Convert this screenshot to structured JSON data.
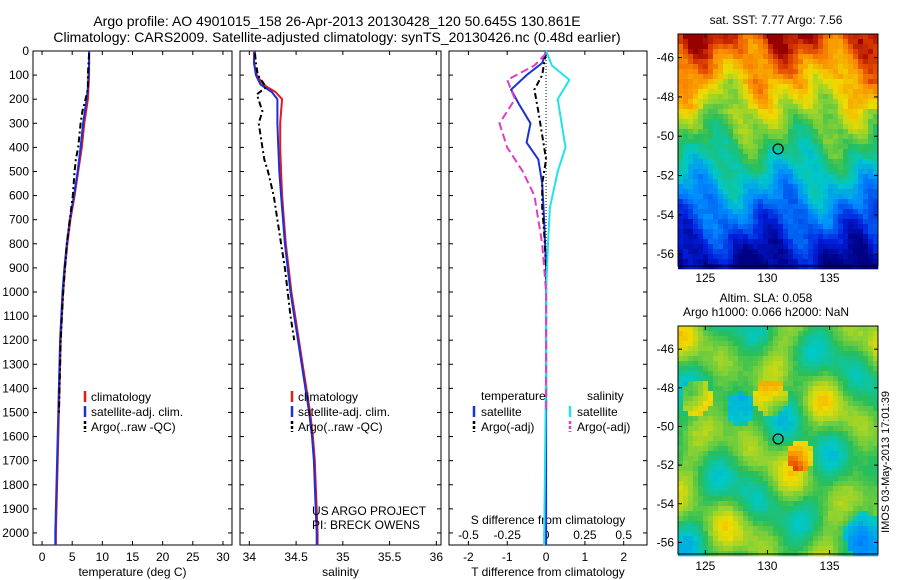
{
  "header": {
    "line1": "Argo profile: AO 4901015_158 26-Apr-2013 20130428_120 50.645S 130.861E",
    "line2": "Climatology: CARS2009. Satellite-adjusted climatology: synTS_20130426.nc (0.48d earlier)"
  },
  "side_label": "IMOS 03-May-2013 17:01:39",
  "chart_data": [
    {
      "type": "line",
      "panel": "temperature",
      "xlabel": "temperature (deg C)",
      "xlim": [
        -1.5,
        31.5
      ],
      "xticks": [
        0,
        5,
        10,
        15,
        20,
        25,
        30
      ],
      "ylim": [
        0,
        2050
      ],
      "yticks": [
        0,
        100,
        200,
        300,
        400,
        500,
        600,
        700,
        800,
        900,
        1000,
        1100,
        1200,
        1300,
        1400,
        1500,
        1600,
        1700,
        1800,
        1900,
        2000
      ],
      "yinverted": true,
      "legend": [
        "climatology",
        "satellite-adj. clim.",
        "Argo(..raw -QC)"
      ],
      "series": [
        {
          "name": "climatology",
          "color": "#e41a1c",
          "dash": "solid",
          "points": [
            [
              7.8,
              0
            ],
            [
              7.8,
              50
            ],
            [
              7.8,
              100
            ],
            [
              7.7,
              150
            ],
            [
              7.6,
              200
            ],
            [
              7.3,
              250
            ],
            [
              7.0,
              300
            ],
            [
              6.6,
              400
            ],
            [
              6.0,
              500
            ],
            [
              5.4,
              600
            ],
            [
              4.7,
              700
            ],
            [
              4.2,
              800
            ],
            [
              3.8,
              900
            ],
            [
              3.5,
              1000
            ],
            [
              3.3,
              1100
            ],
            [
              3.1,
              1200
            ],
            [
              3.0,
              1300
            ],
            [
              2.9,
              1400
            ],
            [
              2.8,
              1500
            ],
            [
              2.7,
              1600
            ],
            [
              2.6,
              1700
            ],
            [
              2.5,
              1800
            ],
            [
              2.4,
              1900
            ],
            [
              2.3,
              2000
            ],
            [
              2.3,
              2050
            ]
          ]
        },
        {
          "name": "satellite-adj. clim.",
          "color": "#1f2fd6",
          "dash": "solid",
          "points": [
            [
              7.8,
              0
            ],
            [
              7.8,
              50
            ],
            [
              7.7,
              100
            ],
            [
              7.6,
              150
            ],
            [
              7.4,
              200
            ],
            [
              7.1,
              250
            ],
            [
              6.8,
              300
            ],
            [
              6.4,
              400
            ],
            [
              5.9,
              500
            ],
            [
              5.3,
              600
            ],
            [
              4.6,
              700
            ],
            [
              4.1,
              800
            ],
            [
              3.7,
              900
            ],
            [
              3.4,
              1000
            ],
            [
              3.2,
              1100
            ],
            [
              3.0,
              1200
            ],
            [
              2.9,
              1300
            ],
            [
              2.8,
              1400
            ],
            [
              2.7,
              1500
            ],
            [
              2.6,
              1600
            ],
            [
              2.5,
              1700
            ],
            [
              2.4,
              1800
            ],
            [
              2.3,
              1900
            ],
            [
              2.2,
              2000
            ],
            [
              2.2,
              2050
            ]
          ]
        },
        {
          "name": "Argo(..raw -QC)",
          "color": "#000000",
          "dash": "6,3,2,3",
          "points": [
            [
              7.8,
              10
            ],
            [
              7.7,
              50
            ],
            [
              7.6,
              100
            ],
            [
              7.6,
              150
            ],
            [
              7.5,
              170
            ],
            [
              7.2,
              200
            ],
            [
              6.7,
              250
            ],
            [
              6.4,
              300
            ],
            [
              6.2,
              350
            ],
            [
              6.0,
              400
            ],
            [
              5.6,
              450
            ],
            [
              5.4,
              500
            ],
            [
              5.1,
              600
            ],
            [
              4.6,
              700
            ],
            [
              4.1,
              800
            ],
            [
              3.8,
              900
            ],
            [
              3.5,
              1000
            ],
            [
              3.3,
              1100
            ],
            [
              3.1,
              1200
            ],
            [
              3.0,
              1300
            ],
            [
              2.9,
              1400
            ],
            [
              2.8,
              1500
            ]
          ]
        }
      ]
    },
    {
      "type": "line",
      "panel": "salinity",
      "xlabel": "salinity",
      "xlim": [
        33.9,
        36.05
      ],
      "xticks": [
        34,
        34.5,
        35,
        35.5,
        36
      ],
      "ylim": [
        0,
        2050
      ],
      "yinverted": true,
      "legend": [
        "climatology",
        "satellite-adj. clim.",
        "Argo(..raw -QC)"
      ],
      "annotation": [
        "US ARGO PROJECT",
        "PI: BRECK OWENS"
      ],
      "series": [
        {
          "name": "climatology",
          "color": "#e41a1c",
          "dash": "solid",
          "points": [
            [
              34.05,
              0
            ],
            [
              34.05,
              50
            ],
            [
              34.08,
              100
            ],
            [
              34.15,
              140
            ],
            [
              34.28,
              170
            ],
            [
              34.35,
              200
            ],
            [
              34.34,
              250
            ],
            [
              34.33,
              300
            ],
            [
              34.33,
              400
            ],
            [
              34.34,
              500
            ],
            [
              34.35,
              600
            ],
            [
              34.37,
              700
            ],
            [
              34.39,
              800
            ],
            [
              34.42,
              900
            ],
            [
              34.45,
              1000
            ],
            [
              34.49,
              1100
            ],
            [
              34.53,
              1200
            ],
            [
              34.57,
              1300
            ],
            [
              34.61,
              1400
            ],
            [
              34.65,
              1500
            ],
            [
              34.68,
              1600
            ],
            [
              34.7,
              1700
            ],
            [
              34.71,
              1800
            ],
            [
              34.72,
              1900
            ],
            [
              34.73,
              2000
            ],
            [
              34.73,
              2050
            ]
          ]
        },
        {
          "name": "satellite-adj. clim.",
          "color": "#1f2fd6",
          "dash": "solid",
          "points": [
            [
              34.06,
              0
            ],
            [
              34.05,
              50
            ],
            [
              34.07,
              100
            ],
            [
              34.12,
              140
            ],
            [
              34.24,
              170
            ],
            [
              34.3,
              200
            ],
            [
              34.3,
              250
            ],
            [
              34.3,
              300
            ],
            [
              34.31,
              400
            ],
            [
              34.32,
              500
            ],
            [
              34.34,
              600
            ],
            [
              34.36,
              700
            ],
            [
              34.38,
              800
            ],
            [
              34.41,
              900
            ],
            [
              34.44,
              1000
            ],
            [
              34.48,
              1100
            ],
            [
              34.52,
              1200
            ],
            [
              34.56,
              1300
            ],
            [
              34.6,
              1400
            ],
            [
              34.64,
              1500
            ],
            [
              34.67,
              1600
            ],
            [
              34.69,
              1700
            ],
            [
              34.7,
              1800
            ],
            [
              34.71,
              1900
            ],
            [
              34.72,
              2000
            ],
            [
              34.72,
              2050
            ]
          ]
        },
        {
          "name": "Argo(..raw -QC)",
          "color": "#000000",
          "dash": "6,3,2,3",
          "points": [
            [
              34.06,
              10
            ],
            [
              34.07,
              50
            ],
            [
              34.09,
              100
            ],
            [
              34.18,
              150
            ],
            [
              34.08,
              180
            ],
            [
              34.14,
              250
            ],
            [
              34.1,
              300
            ],
            [
              34.14,
              400
            ],
            [
              34.16,
              450
            ],
            [
              34.2,
              500
            ],
            [
              34.26,
              600
            ],
            [
              34.3,
              700
            ],
            [
              34.34,
              800
            ],
            [
              34.38,
              900
            ],
            [
              34.41,
              1000
            ],
            [
              34.44,
              1100
            ],
            [
              34.48,
              1200
            ]
          ]
        }
      ]
    },
    {
      "type": "line",
      "panel": "difference",
      "xlabel": "T difference from climatology",
      "xlabel_top": "S difference from climatology",
      "xlim": [
        -2.5,
        2.6
      ],
      "xticks": [
        -2,
        -1,
        0,
        1,
        2
      ],
      "xticks_top": [
        -0.5,
        -0.25,
        0,
        0.25,
        0.5
      ],
      "ylim": [
        0,
        2050
      ],
      "yinverted": true,
      "legend_groups": [
        {
          "title": "temperature",
          "entries": [
            "satellite",
            "Argo(-adj)"
          ]
        },
        {
          "title": "salinity",
          "entries": [
            "satellite",
            "Argo(-adj)"
          ]
        }
      ],
      "series": [
        {
          "name": "T satellite",
          "color": "#1f2fd6",
          "dash": "solid",
          "points": [
            [
              0,
              0
            ],
            [
              -0.1,
              50
            ],
            [
              -0.5,
              100
            ],
            [
              -0.9,
              160
            ],
            [
              -0.7,
              220
            ],
            [
              -0.4,
              300
            ],
            [
              -0.5,
              380
            ],
            [
              -0.2,
              450
            ],
            [
              -0.1,
              550
            ],
            [
              -0.05,
              700
            ],
            [
              0,
              900
            ],
            [
              0,
              1200
            ],
            [
              0,
              1500
            ],
            [
              0,
              1800
            ],
            [
              0,
              2050
            ]
          ]
        },
        {
          "name": "T Argo(-adj)",
          "color": "#000000",
          "dash": "6,3,2,3",
          "points": [
            [
              0,
              10
            ],
            [
              -0.05,
              50
            ],
            [
              -0.1,
              100
            ],
            [
              -0.3,
              160
            ],
            [
              -0.2,
              250
            ],
            [
              -0.1,
              350
            ],
            [
              0,
              450
            ],
            [
              -0.1,
              550
            ],
            [
              -0.1,
              650
            ],
            [
              -0.05,
              750
            ],
            [
              0,
              900
            ],
            [
              0,
              1200
            ],
            [
              0,
              1500
            ]
          ]
        },
        {
          "name": "S satellite",
          "color": "#22e3ea",
          "dash": "solid",
          "points": [
            [
              0,
              0
            ],
            [
              0.15,
              60
            ],
            [
              0.6,
              120
            ],
            [
              0.3,
              200
            ],
            [
              0.4,
              300
            ],
            [
              0.5,
              400
            ],
            [
              0.3,
              500
            ],
            [
              0.1,
              650
            ],
            [
              0.05,
              800
            ],
            [
              0,
              1000
            ],
            [
              0,
              1300
            ],
            [
              -0.02,
              1600
            ],
            [
              -0.04,
              1900
            ],
            [
              -0.05,
              2050
            ]
          ]
        },
        {
          "name": "S Argo(-adj)",
          "color": "#e03cc9",
          "dash": "8,4",
          "points": [
            [
              0,
              10
            ],
            [
              -0.3,
              60
            ],
            [
              -1.0,
              120
            ],
            [
              -0.8,
              200
            ],
            [
              -1.2,
              300
            ],
            [
              -1.0,
              400
            ],
            [
              -0.6,
              500
            ],
            [
              -0.3,
              600
            ],
            [
              -0.2,
              700
            ],
            [
              -0.1,
              800
            ],
            [
              0,
              1000
            ],
            [
              0,
              1200
            ],
            [
              0,
              1500
            ]
          ]
        }
      ]
    }
  ],
  "maps": [
    {
      "title": "sat. SST: 7.77 Argo: 7.56",
      "xticks": [
        125,
        130,
        135
      ],
      "yticks": [
        -46,
        -48,
        -50,
        -52,
        -54,
        -56
      ],
      "xlim": [
        122.8,
        138.9
      ],
      "ylim": [
        -56.6,
        -44.8
      ],
      "marker": [
        130.861,
        -50.645
      ],
      "field": "sst"
    },
    {
      "title": "Altim. SLA: 0.058",
      "subtitle": "Argo h1000: 0.066 h2000: NaN",
      "xticks": [
        125,
        130,
        135
      ],
      "yticks": [
        -46,
        -48,
        -50,
        -52,
        -54,
        -56
      ],
      "xlim": [
        122.8,
        138.9
      ],
      "ylim": [
        -56.6,
        -44.8
      ],
      "marker": [
        130.861,
        -50.645
      ],
      "field": "sla"
    }
  ]
}
